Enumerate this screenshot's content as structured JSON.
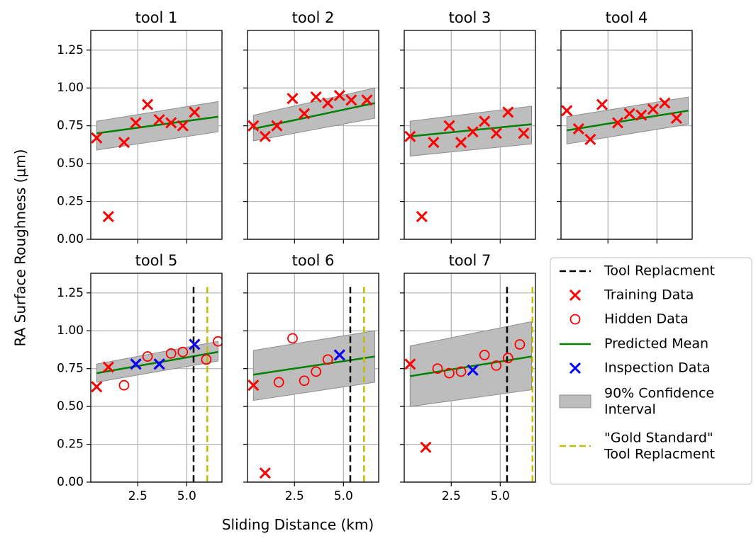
{
  "figure": {
    "ylabel": "RA Surface Roughness (μm)",
    "xlabel": "Sliding Distance (km)"
  },
  "legend": {
    "placement": "right",
    "entries": [
      {
        "key": "tool_replacement",
        "label": "Tool Replacment",
        "style": "dashed-line",
        "color": "#000000"
      },
      {
        "key": "training",
        "label": "Training Data",
        "style": "x-marker",
        "color": "#ff0000"
      },
      {
        "key": "hidden",
        "label": "Hidden Data",
        "style": "o-marker",
        "color": "#ff0000"
      },
      {
        "key": "mean",
        "label": "Predicted Mean",
        "style": "line",
        "color": "#008000"
      },
      {
        "key": "inspection",
        "label": "Inspection Data",
        "style": "x-marker",
        "color": "#0000ff"
      },
      {
        "key": "ci",
        "label": "90% Confidence Interval",
        "lines": [
          "90% Confidence",
          "Interval"
        ],
        "style": "patch",
        "color": "#bdbdbd"
      },
      {
        "key": "gold",
        "label": "\"Gold Standard\" Tool Replacment",
        "lines": [
          "\"Gold Standard\"",
          "Tool Replacment"
        ],
        "style": "dashed-line",
        "color": "#bfbf00"
      }
    ]
  },
  "colors": {
    "training": "#ff0000",
    "hidden": "#ff0000",
    "inspection": "#0000ff",
    "mean": "#008000",
    "ci_fill": "#bdbdbd",
    "ci_edge": "#8c8c8c",
    "replacement": "#000000",
    "gold": "#bfbf00",
    "grid": "#b0b0b0"
  },
  "chart_data": [
    {
      "type": "scatter",
      "title": "tool 1",
      "xlim": [
        0.1,
        6.8
      ],
      "ylim": [
        0,
        1.38
      ],
      "xticks": [
        2.5,
        5.0
      ],
      "xtick_labels": [
        "",
        ""
      ],
      "yticks": [
        0,
        0.25,
        0.5,
        0.75,
        1.0,
        1.25
      ],
      "ytick_labels": [
        "0.00",
        "0.25",
        "0.50",
        "0.75",
        "1.00",
        "1.25"
      ],
      "grid": true,
      "training": {
        "x": [
          0.4,
          1.0,
          1.8,
          2.4,
          3.0,
          3.6,
          4.2,
          4.8,
          5.4
        ],
        "y": [
          0.67,
          0.15,
          0.64,
          0.77,
          0.89,
          0.79,
          0.77,
          0.75,
          0.84
        ]
      },
      "hidden": {
        "x": [],
        "y": []
      },
      "inspection": {
        "x": [],
        "y": []
      },
      "mean": {
        "x": [
          0.4,
          6.6
        ],
        "y": [
          0.7,
          0.81
        ]
      },
      "ci": {
        "x": [
          0.4,
          6.6
        ],
        "lower": [
          0.59,
          0.71
        ],
        "upper": [
          0.78,
          0.91
        ]
      },
      "replacement_x": null,
      "gold_x": null
    },
    {
      "type": "scatter",
      "title": "tool 2",
      "xlim": [
        0.1,
        6.8
      ],
      "ylim": [
        0,
        1.38
      ],
      "xticks": [
        2.5,
        5.0
      ],
      "xtick_labels": [
        "",
        ""
      ],
      "yticks": [
        0,
        0.25,
        0.5,
        0.75,
        1.0,
        1.25
      ],
      "ytick_labels": [],
      "grid": true,
      "training": {
        "x": [
          0.4,
          1.0,
          1.6,
          2.4,
          3.0,
          3.6,
          4.2,
          4.8,
          5.4,
          6.2
        ],
        "y": [
          0.75,
          0.68,
          0.75,
          0.93,
          0.83,
          0.94,
          0.9,
          0.95,
          0.92,
          0.92
        ]
      },
      "hidden": {
        "x": [],
        "y": []
      },
      "inspection": {
        "x": [],
        "y": []
      },
      "mean": {
        "x": [
          0.4,
          6.6
        ],
        "y": [
          0.73,
          0.9
        ]
      },
      "ci": {
        "x": [
          0.4,
          6.6
        ],
        "lower": [
          0.65,
          0.8
        ],
        "upper": [
          0.82,
          1.0
        ]
      },
      "replacement_x": null,
      "gold_x": null
    },
    {
      "type": "scatter",
      "title": "tool 3",
      "xlim": [
        0.1,
        6.8
      ],
      "ylim": [
        0,
        1.38
      ],
      "xticks": [
        2.5,
        5.0
      ],
      "xtick_labels": [
        "",
        ""
      ],
      "yticks": [
        0,
        0.25,
        0.5,
        0.75,
        1.0,
        1.25
      ],
      "ytick_labels": [],
      "grid": true,
      "training": {
        "x": [
          0.4,
          1.0,
          1.6,
          2.4,
          3.0,
          3.6,
          4.2,
          4.8,
          5.4,
          6.2
        ],
        "y": [
          0.68,
          0.15,
          0.64,
          0.75,
          0.64,
          0.71,
          0.78,
          0.7,
          0.84,
          0.7
        ]
      },
      "hidden": {
        "x": [],
        "y": []
      },
      "inspection": {
        "x": [],
        "y": []
      },
      "mean": {
        "x": [
          0.4,
          6.6
        ],
        "y": [
          0.68,
          0.76
        ]
      },
      "ci": {
        "x": [
          0.4,
          6.6
        ],
        "lower": [
          0.55,
          0.63
        ],
        "upper": [
          0.78,
          0.88
        ]
      },
      "replacement_x": null,
      "gold_x": null
    },
    {
      "type": "scatter",
      "title": "tool 4",
      "xlim": [
        0.1,
        6.8
      ],
      "ylim": [
        0,
        1.38
      ],
      "xticks": [
        2.5,
        5.0
      ],
      "xtick_labels": [
        "",
        ""
      ],
      "yticks": [
        0,
        0.25,
        0.5,
        0.75,
        1.0,
        1.25
      ],
      "ytick_labels": [],
      "grid": true,
      "training": {
        "x": [
          0.4,
          1.0,
          1.6,
          2.2,
          3.0,
          3.6,
          4.2,
          4.8,
          5.4,
          6.0
        ],
        "y": [
          0.85,
          0.73,
          0.66,
          0.89,
          0.77,
          0.83,
          0.82,
          0.86,
          0.9,
          0.8
        ]
      },
      "hidden": {
        "x": [],
        "y": []
      },
      "inspection": {
        "x": [],
        "y": []
      },
      "mean": {
        "x": [
          0.4,
          6.6
        ],
        "y": [
          0.72,
          0.85
        ]
      },
      "ci": {
        "x": [
          0.4,
          6.6
        ],
        "lower": [
          0.63,
          0.76
        ],
        "upper": [
          0.81,
          0.94
        ]
      },
      "replacement_x": null,
      "gold_x": null
    },
    {
      "type": "scatter",
      "title": "tool 5",
      "xlim": [
        0.1,
        6.8
      ],
      "ylim": [
        0,
        1.38
      ],
      "xticks": [
        2.5,
        5.0
      ],
      "xtick_labels": [
        "2.5",
        "5.0"
      ],
      "yticks": [
        0,
        0.25,
        0.5,
        0.75,
        1.0,
        1.25
      ],
      "ytick_labels": [
        "0.00",
        "0.25",
        "0.50",
        "0.75",
        "1.00",
        "1.25"
      ],
      "grid": true,
      "training": {
        "x": [
          0.4,
          1.0,
          2.4,
          3.6,
          5.4
        ],
        "y": [
          0.63,
          0.76,
          0.78,
          0.78,
          0.91
        ]
      },
      "hidden": {
        "x": [
          1.8,
          3.0,
          4.2,
          4.8,
          6.0,
          6.6
        ],
        "y": [
          0.64,
          0.83,
          0.85,
          0.86,
          0.81,
          0.93
        ]
      },
      "inspection": {
        "x": [
          2.4,
          3.6,
          5.4
        ],
        "y": [
          0.78,
          0.78,
          0.91
        ]
      },
      "mean": {
        "x": [
          0.4,
          6.6
        ],
        "y": [
          0.72,
          0.86
        ]
      },
      "ci": {
        "x": [
          0.4,
          6.6
        ],
        "lower": [
          0.66,
          0.8
        ],
        "upper": [
          0.78,
          0.93
        ]
      },
      "replacement_x": 5.35,
      "gold_x": 6.05
    },
    {
      "type": "scatter",
      "title": "tool 6",
      "xlim": [
        0.1,
        6.8
      ],
      "ylim": [
        0,
        1.38
      ],
      "xticks": [
        2.5,
        5.0
      ],
      "xtick_labels": [
        "2.5",
        "5.0"
      ],
      "yticks": [
        0,
        0.25,
        0.5,
        0.75,
        1.0,
        1.25
      ],
      "ytick_labels": [],
      "grid": true,
      "training": {
        "x": [
          0.4,
          1.0,
          4.8
        ],
        "y": [
          0.64,
          0.06,
          0.84
        ]
      },
      "hidden": {
        "x": [
          1.7,
          2.4,
          3.0,
          3.6,
          4.2
        ],
        "y": [
          0.66,
          0.95,
          0.67,
          0.73,
          0.81
        ]
      },
      "inspection": {
        "x": [
          4.8
        ],
        "y": [
          0.84
        ]
      },
      "mean": {
        "x": [
          0.4,
          6.6
        ],
        "y": [
          0.71,
          0.83
        ]
      },
      "ci": {
        "x": [
          0.4,
          6.6
        ],
        "lower": [
          0.54,
          0.66
        ],
        "upper": [
          0.87,
          1.0
        ]
      },
      "replacement_x": 5.35,
      "gold_x": 6.05
    },
    {
      "type": "scatter",
      "title": "tool 7",
      "xlim": [
        0.1,
        6.8
      ],
      "ylim": [
        0,
        1.38
      ],
      "xticks": [
        2.5,
        5.0
      ],
      "xtick_labels": [
        "2.5",
        "5.0"
      ],
      "yticks": [
        0,
        0.25,
        0.5,
        0.75,
        1.0,
        1.25
      ],
      "ytick_labels": [],
      "grid": true,
      "training": {
        "x": [
          0.4,
          1.2,
          3.6
        ],
        "y": [
          0.78,
          0.23,
          0.74
        ]
      },
      "hidden": {
        "x": [
          1.8,
          2.4,
          3.0,
          4.2,
          4.8,
          5.4,
          6.0
        ],
        "y": [
          0.75,
          0.72,
          0.73,
          0.84,
          0.77,
          0.82,
          0.91
        ]
      },
      "inspection": {
        "x": [
          3.6
        ],
        "y": [
          0.74
        ]
      },
      "mean": {
        "x": [
          0.4,
          6.6
        ],
        "y": [
          0.7,
          0.83
        ]
      },
      "ci": {
        "x": [
          0.4,
          6.6
        ],
        "lower": [
          0.5,
          0.61
        ],
        "upper": [
          0.9,
          1.06
        ]
      },
      "replacement_x": 5.35,
      "gold_x": 6.65
    }
  ]
}
